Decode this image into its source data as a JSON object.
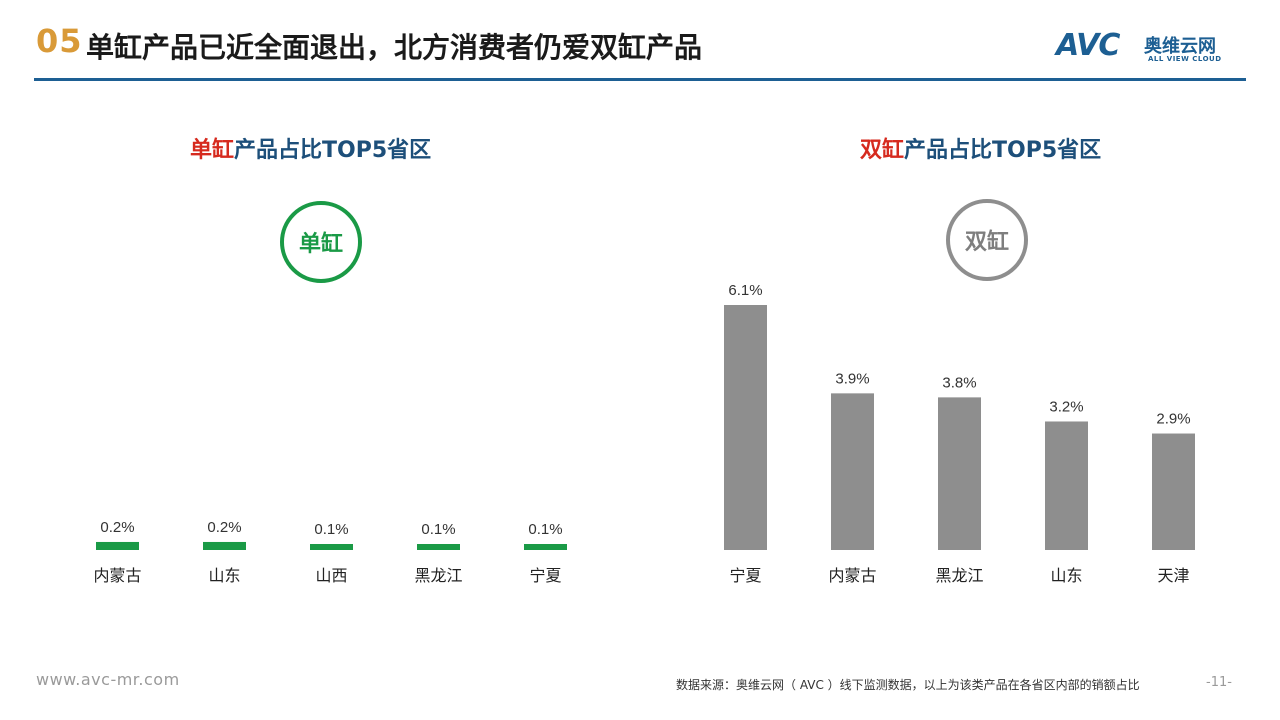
{
  "header": {
    "section_number": "05",
    "title": "单缸产品已近全面退出，北方消费者仍爱双缸产品"
  },
  "logo": {
    "mark": "AVC",
    "name_cn": "奥维云网",
    "name_en": "ALL VIEW CLOUD"
  },
  "left_panel": {
    "title_highlight": "单缸",
    "title_rest": "产品占比TOP5省区",
    "badge": "单缸"
  },
  "right_panel": {
    "title_highlight": "双缸",
    "title_rest": "产品占比TOP5省区",
    "badge": "双缸"
  },
  "footer": {
    "url": "www.avc-mr.com",
    "source": "数据来源：奥维云网（ AVC ）线下监测数据，以上为该类产品在各省区内部的销额占比",
    "page": "-11-"
  },
  "colors": {
    "single_bar": "#1a9a46",
    "twin_bar": "#8e8e8e",
    "title_blue": "#1d4f7a",
    "highlight_red": "#d62a1e",
    "rule_blue": "#1d5f93"
  },
  "chart_data": [
    {
      "type": "bar",
      "categories": [
        "内蒙古",
        "山东",
        "山西",
        "黑龙江",
        "宁夏"
      ],
      "values": [
        0.2,
        0.2,
        0.1,
        0.1,
        0.1
      ],
      "labels": [
        "0.2%",
        "0.2%",
        "0.1%",
        "0.1%",
        "0.1%"
      ],
      "ylim": [
        0,
        6.1
      ],
      "grid": false
    },
    {
      "type": "bar",
      "categories": [
        "宁夏",
        "内蒙古",
        "黑龙江",
        "山东",
        "天津"
      ],
      "values": [
        6.1,
        3.9,
        3.8,
        3.2,
        2.9
      ],
      "labels": [
        "6.1%",
        "3.9%",
        "3.8%",
        "3.2%",
        "2.9%"
      ],
      "ylim": [
        0,
        6.1
      ],
      "grid": false
    }
  ]
}
